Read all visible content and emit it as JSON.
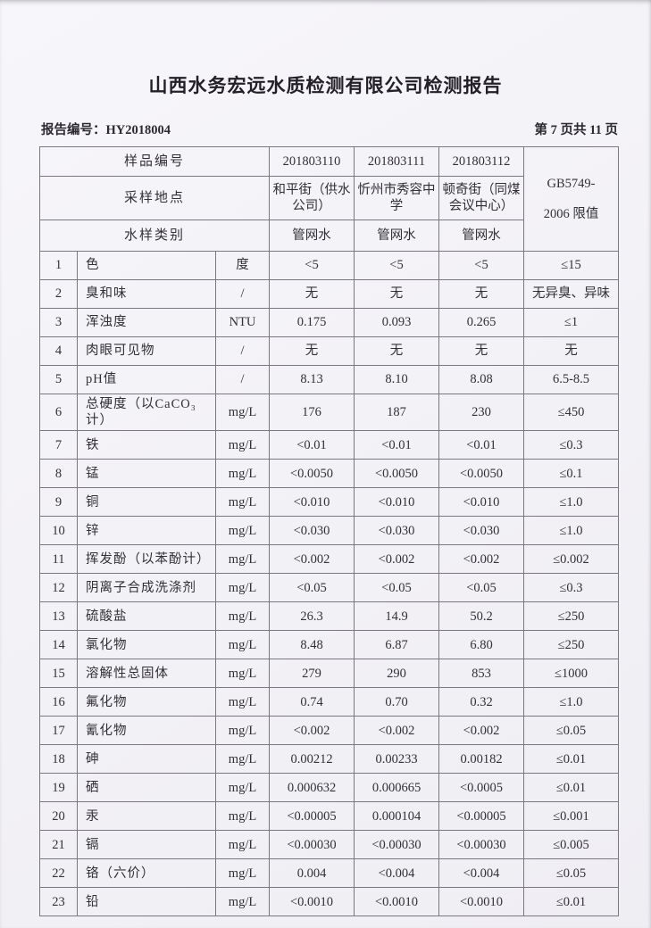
{
  "page": {
    "title": "山西水务宏远水质检测有限公司检测报告",
    "report_number": "报告编号：HY2018004",
    "page_indicator": "第 7 页共 11 页"
  },
  "colors": {
    "paper": "#f3f2f6",
    "ink": "#323036",
    "table_border": "#7b7781"
  },
  "table": {
    "header": {
      "sample_id_label": "样品编号",
      "location_label": "采样地点",
      "sample_type_label": "水样类别",
      "sample_ids": [
        "201803110",
        "201803111",
        "201803112"
      ],
      "locations": [
        "和平街（供水公司）",
        "忻州市秀容中学",
        "顿奇街（同煤会议中心）"
      ],
      "sample_types": [
        "管网水",
        "管网水",
        "管网水"
      ],
      "standard_line1": "GB5749-",
      "standard_line2": "2006 限值"
    },
    "rows": [
      {
        "no": "1",
        "name": "色",
        "unit": "度",
        "values": [
          "<5",
          "<5",
          "<5"
        ],
        "limit": "≤15"
      },
      {
        "no": "2",
        "name": "臭和味",
        "unit": "/",
        "values": [
          "无",
          "无",
          "无"
        ],
        "limit": "无异臭、异味"
      },
      {
        "no": "3",
        "name": "浑浊度",
        "unit": "NTU",
        "values": [
          "0.175",
          "0.093",
          "0.265"
        ],
        "limit": "≤1"
      },
      {
        "no": "4",
        "name": "肉眼可见物",
        "unit": "/",
        "values": [
          "无",
          "无",
          "无"
        ],
        "limit": "无"
      },
      {
        "no": "5",
        "name": "pH值",
        "unit": "/",
        "values": [
          "8.13",
          "8.10",
          "8.08"
        ],
        "limit": "6.5-8.5"
      },
      {
        "no": "6",
        "name": "总硬度（以CaCO₃计）",
        "unit": "mg/L",
        "values": [
          "176",
          "187",
          "230"
        ],
        "limit": "≤450"
      },
      {
        "no": "7",
        "name": "铁",
        "unit": "mg/L",
        "values": [
          "<0.01",
          "<0.01",
          "<0.01"
        ],
        "limit": "≤0.3"
      },
      {
        "no": "8",
        "name": "锰",
        "unit": "mg/L",
        "values": [
          "<0.0050",
          "<0.0050",
          "<0.0050"
        ],
        "limit": "≤0.1"
      },
      {
        "no": "9",
        "name": "铜",
        "unit": "mg/L",
        "values": [
          "<0.010",
          "<0.010",
          "<0.010"
        ],
        "limit": "≤1.0"
      },
      {
        "no": "10",
        "name": "锌",
        "unit": "mg/L",
        "values": [
          "<0.030",
          "<0.030",
          "<0.030"
        ],
        "limit": "≤1.0"
      },
      {
        "no": "11",
        "name": "挥发酚（以苯酚计）",
        "unit": "mg/L",
        "values": [
          "<0.002",
          "<0.002",
          "<0.002"
        ],
        "limit": "≤0.002"
      },
      {
        "no": "12",
        "name": "阴离子合成洗涤剂",
        "unit": "mg/L",
        "values": [
          "<0.05",
          "<0.05",
          "<0.05"
        ],
        "limit": "≤0.3"
      },
      {
        "no": "13",
        "name": "硫酸盐",
        "unit": "mg/L",
        "values": [
          "26.3",
          "14.9",
          "50.2"
        ],
        "limit": "≤250"
      },
      {
        "no": "14",
        "name": "氯化物",
        "unit": "mg/L",
        "values": [
          "8.48",
          "6.87",
          "6.80"
        ],
        "limit": "≤250"
      },
      {
        "no": "15",
        "name": "溶解性总固体",
        "unit": "mg/L",
        "values": [
          "279",
          "290",
          "853"
        ],
        "limit": "≤1000"
      },
      {
        "no": "16",
        "name": "氟化物",
        "unit": "mg/L",
        "values": [
          "0.74",
          "0.70",
          "0.32"
        ],
        "limit": "≤1.0"
      },
      {
        "no": "17",
        "name": "氰化物",
        "unit": "mg/L",
        "values": [
          "<0.002",
          "<0.002",
          "<0.002"
        ],
        "limit": "≤0.05"
      },
      {
        "no": "18",
        "name": "砷",
        "unit": "mg/L",
        "values": [
          "0.00212",
          "0.00233",
          "0.00182"
        ],
        "limit": "≤0.01"
      },
      {
        "no": "19",
        "name": "硒",
        "unit": "mg/L",
        "values": [
          "0.000632",
          "0.000665",
          "<0.0005"
        ],
        "limit": "≤0.01"
      },
      {
        "no": "20",
        "name": "汞",
        "unit": "mg/L",
        "values": [
          "<0.00005",
          "0.000104",
          "<0.00005"
        ],
        "limit": "≤0.001"
      },
      {
        "no": "21",
        "name": "镉",
        "unit": "mg/L",
        "values": [
          "<0.00030",
          "<0.00030",
          "<0.00030"
        ],
        "limit": "≤0.005"
      },
      {
        "no": "22",
        "name": "铬（六价）",
        "unit": "mg/L",
        "values": [
          "0.004",
          "<0.004",
          "<0.004"
        ],
        "limit": "≤0.05"
      },
      {
        "no": "23",
        "name": "铅",
        "unit": "mg/L",
        "values": [
          "<0.0010",
          "<0.0010",
          "<0.0010"
        ],
        "limit": "≤0.01"
      }
    ]
  }
}
